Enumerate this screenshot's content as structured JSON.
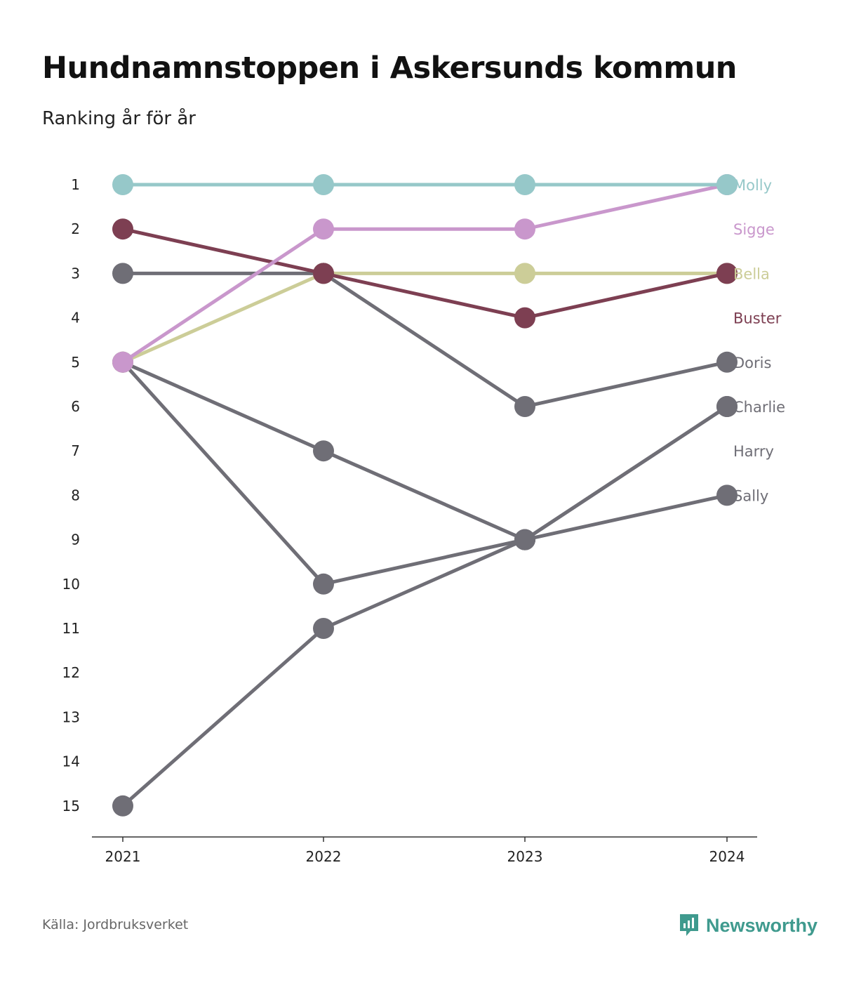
{
  "header": {
    "title": "Hundnamnstoppen i Askersunds kommun",
    "subtitle": "Ranking år för år"
  },
  "footer": {
    "source": "Källa: Jordbruksverket",
    "brand": "Newsworthy",
    "brand_icon": "newsworthy-logo-icon"
  },
  "chart_data": {
    "type": "line",
    "x": [
      "2021",
      "2022",
      "2023",
      "2024"
    ],
    "ylim": [
      15,
      1
    ],
    "y_ticks": [
      1,
      2,
      3,
      4,
      5,
      6,
      7,
      8,
      9,
      10,
      11,
      12,
      13,
      14,
      15
    ],
    "y_inverted": true,
    "grid": false,
    "legend": "direct labels at right end",
    "colors": {
      "muted": "#6f6e76",
      "brand": "#3f9a8e"
    },
    "series": [
      {
        "name": "Sally",
        "color": "#6f6e76",
        "values": [
          15,
          11,
          9,
          8
        ]
      },
      {
        "name": "Harry",
        "color": "#6f6e76",
        "values": [
          5,
          10,
          9,
          6
        ]
      },
      {
        "name": "Charlie",
        "color": "#6f6e76",
        "values": [
          5,
          7,
          9,
          6
        ]
      },
      {
        "name": "Doris",
        "color": "#6f6e76",
        "values": [
          3,
          3,
          6,
          5
        ]
      },
      {
        "name": "Bella",
        "color": "#cccd98",
        "values": [
          5,
          3,
          3,
          3
        ]
      },
      {
        "name": "Buster",
        "color": "#7d3f52",
        "values": [
          2,
          3,
          4,
          3
        ]
      },
      {
        "name": "Sigge",
        "color": "#c997cc",
        "values": [
          5,
          2,
          2,
          1
        ]
      },
      {
        "name": "Molly",
        "color": "#96c8c9",
        "values": [
          1,
          1,
          1,
          1
        ]
      }
    ],
    "end_labels": [
      {
        "name": "Molly",
        "rank": 1,
        "color": "#96c8c9"
      },
      {
        "name": "Sigge",
        "rank": 2,
        "color": "#c997cc"
      },
      {
        "name": "Bella",
        "rank": 3,
        "color": "#cccd98"
      },
      {
        "name": "Buster",
        "rank": 4,
        "color": "#7d3f52"
      },
      {
        "name": "Doris",
        "rank": 5,
        "color": "#6f6e76"
      },
      {
        "name": "Charlie",
        "rank": 6,
        "color": "#6f6e76"
      },
      {
        "name": "Harry",
        "rank": 7,
        "color": "#6f6e76"
      },
      {
        "name": "Sally",
        "rank": 8,
        "color": "#6f6e76"
      }
    ]
  }
}
